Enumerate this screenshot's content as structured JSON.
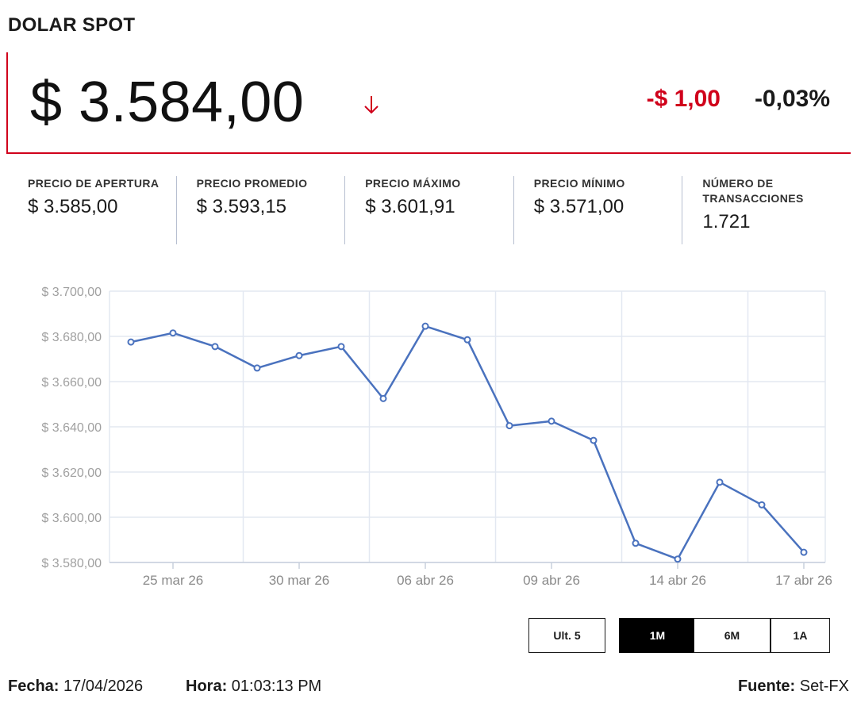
{
  "header": {
    "title": "DOLAR SPOT"
  },
  "price": {
    "value": "$ 3.584,00",
    "direction_icon": "arrow-down-icon",
    "change_abs": "-$ 1,00",
    "change_pct": "-0,03%"
  },
  "stats": [
    {
      "label": "PRECIO DE APERTURA",
      "value": "$ 3.585,00"
    },
    {
      "label": "PRECIO PROMEDIO",
      "value": "$ 3.593,15"
    },
    {
      "label": "PRECIO MÁXIMO",
      "value": "$ 3.601,91"
    },
    {
      "label": "PRECIO MÍNIMO",
      "value": "$ 3.571,00"
    },
    {
      "label": "NÚMERO DE TRANSACCIONES",
      "value": "1.721"
    }
  ],
  "chart_data": {
    "type": "line",
    "title": "",
    "xlabel": "",
    "ylabel": "",
    "ylim": [
      3580,
      3700
    ],
    "y_ticks": [
      3580,
      3600,
      3620,
      3640,
      3660,
      3680,
      3700
    ],
    "y_tick_labels": [
      "$ 3.580,00",
      "$ 3.600,00",
      "$ 3.620,00",
      "$ 3.640,00",
      "$ 3.660,00",
      "$ 3.680,00",
      "$ 3.700,00"
    ],
    "x": [
      "2026-03-24",
      "2026-03-25",
      "2026-03-26",
      "2026-03-27",
      "2026-03-30",
      "2026-03-31",
      "2026-04-01",
      "2026-04-06",
      "2026-04-07",
      "2026-04-08",
      "2026-04-09",
      "2026-04-10",
      "2026-04-13",
      "2026-04-14",
      "2026-04-15",
      "2026-04-16",
      "2026-04-17"
    ],
    "x_tick_labels": [
      "25 mar 26",
      "30 mar 26",
      "06 abr 26",
      "09 abr 26",
      "14 abr 26",
      "17 abr 26"
    ],
    "x_tick_index": [
      1,
      4,
      7,
      10,
      13,
      16
    ],
    "series": [
      {
        "values": [
          3677.5,
          3681.5,
          3675.5,
          3666.0,
          3671.5,
          3675.5,
          3652.5,
          3684.5,
          3678.5,
          3640.5,
          3642.5,
          3634.0,
          3588.5,
          3581.5,
          3615.5,
          3605.5,
          3584.5
        ]
      }
    ],
    "grid": true,
    "legend": "none",
    "line_color": "#4a72be"
  },
  "range_buttons": [
    {
      "label": "Ult. 5",
      "active": false
    },
    {
      "label": "1M",
      "active": true
    },
    {
      "label": "6M",
      "active": false
    },
    {
      "label": "1A",
      "active": false
    }
  ],
  "footer": {
    "date_label": "Fecha:",
    "date_value": "17/04/2026",
    "time_label": "Hora:",
    "time_value": "01:03:13 PM",
    "source_label": "Fuente:",
    "source_value": "Set-FX"
  }
}
